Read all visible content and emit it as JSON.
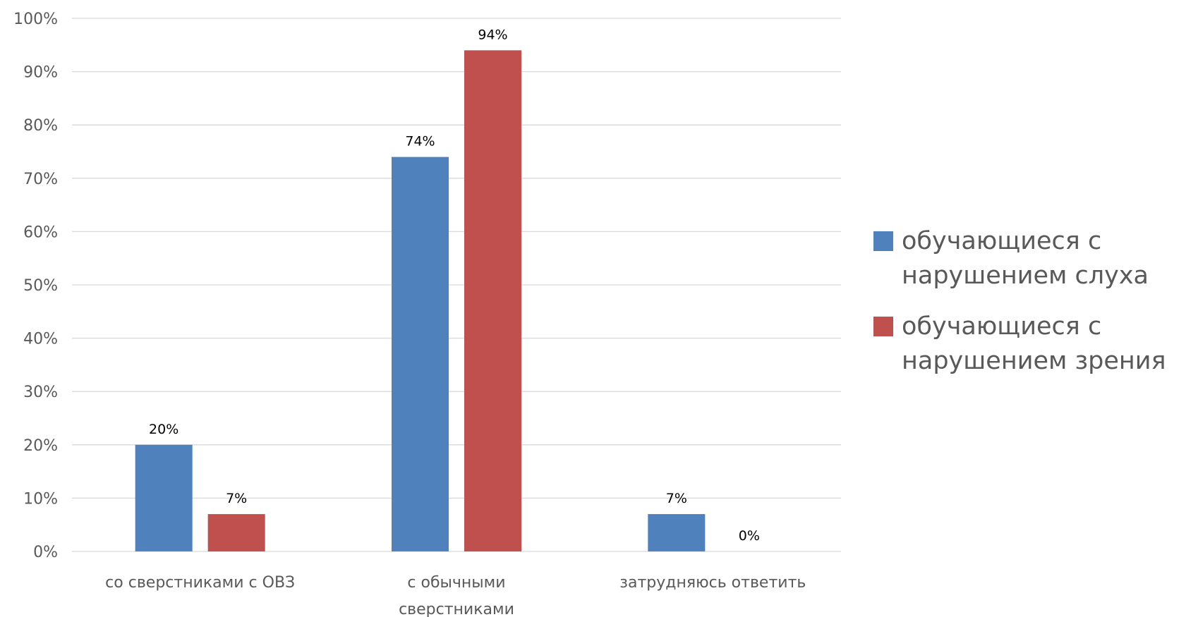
{
  "chart_data": {
    "type": "bar",
    "categories": [
      [
        "со сверстниками с ОВЗ"
      ],
      [
        "с обычными",
        "сверстниками"
      ],
      [
        "затрудняюсь ответить"
      ]
    ],
    "series": [
      {
        "name": [
          "обучающиеся с",
          "нарушением слуха"
        ],
        "color": "#4f81bd",
        "values": [
          20,
          74,
          7
        ],
        "labels": [
          "20%",
          "74%",
          "7%"
        ]
      },
      {
        "name": [
          "обучающиеся с",
          "нарушением зрения"
        ],
        "color": "#c0504d",
        "values": [
          7,
          94,
          0
        ],
        "labels": [
          "7%",
          "94%",
          "0%"
        ]
      }
    ],
    "title": "",
    "xlabel": "",
    "ylabel": "",
    "ylim": [
      0,
      100
    ],
    "yticks": [
      0,
      10,
      20,
      30,
      40,
      50,
      60,
      70,
      80,
      90,
      100
    ],
    "ytick_labels": [
      "0%",
      "10%",
      "20%",
      "30%",
      "40%",
      "50%",
      "60%",
      "70%",
      "80%",
      "90%",
      "100%"
    ],
    "grid": true,
    "gridline_color": "#d9d9d9",
    "legend_position": "right"
  }
}
